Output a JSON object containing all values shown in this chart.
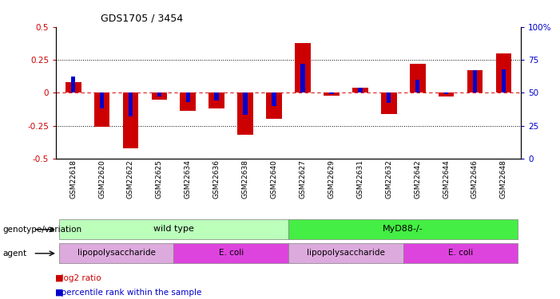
{
  "title": "GDS1705 / 3454",
  "samples": [
    "GSM22618",
    "GSM22620",
    "GSM22622",
    "GSM22625",
    "GSM22634",
    "GSM22636",
    "GSM22638",
    "GSM22640",
    "GSM22627",
    "GSM22629",
    "GSM22631",
    "GSM22632",
    "GSM22642",
    "GSM22644",
    "GSM22646",
    "GSM22648"
  ],
  "log2_ratio": [
    0.08,
    -0.26,
    -0.42,
    -0.05,
    -0.14,
    -0.12,
    -0.32,
    -0.2,
    0.38,
    -0.02,
    0.04,
    -0.16,
    0.22,
    -0.03,
    0.17,
    0.3
  ],
  "percentile_rank": [
    62,
    38,
    32,
    47,
    43,
    44,
    33,
    40,
    72,
    49,
    54,
    42,
    60,
    49,
    67,
    68
  ],
  "bar_color": "#cc0000",
  "pct_color": "#0000cc",
  "ylim": [
    -0.5,
    0.5
  ],
  "dotted_levels": [
    0.25,
    -0.25
  ],
  "zero_line_color": "#dd2222",
  "background_color": "#ffffff",
  "genotype_labels": [
    {
      "text": "wild type",
      "start": 0,
      "end": 7,
      "color": "#bbffbb"
    },
    {
      "text": "MyD88-/-",
      "start": 8,
      "end": 15,
      "color": "#44ee44"
    }
  ],
  "agent_labels": [
    {
      "text": "lipopolysaccharide",
      "start": 0,
      "end": 3,
      "color": "#ddaadd"
    },
    {
      "text": "E. coli",
      "start": 4,
      "end": 7,
      "color": "#dd44dd"
    },
    {
      "text": "lipopolysaccharide",
      "start": 8,
      "end": 11,
      "color": "#ddaadd"
    },
    {
      "text": "E. coli",
      "start": 12,
      "end": 15,
      "color": "#dd44dd"
    }
  ],
  "legend_items": [
    {
      "label": "log2 ratio",
      "color": "#cc0000"
    },
    {
      "label": "percentile rank within the sample",
      "color": "#0000cc"
    }
  ],
  "left_label": "genotype/variation",
  "agent_left_label": "agent",
  "bar_width": 0.55
}
